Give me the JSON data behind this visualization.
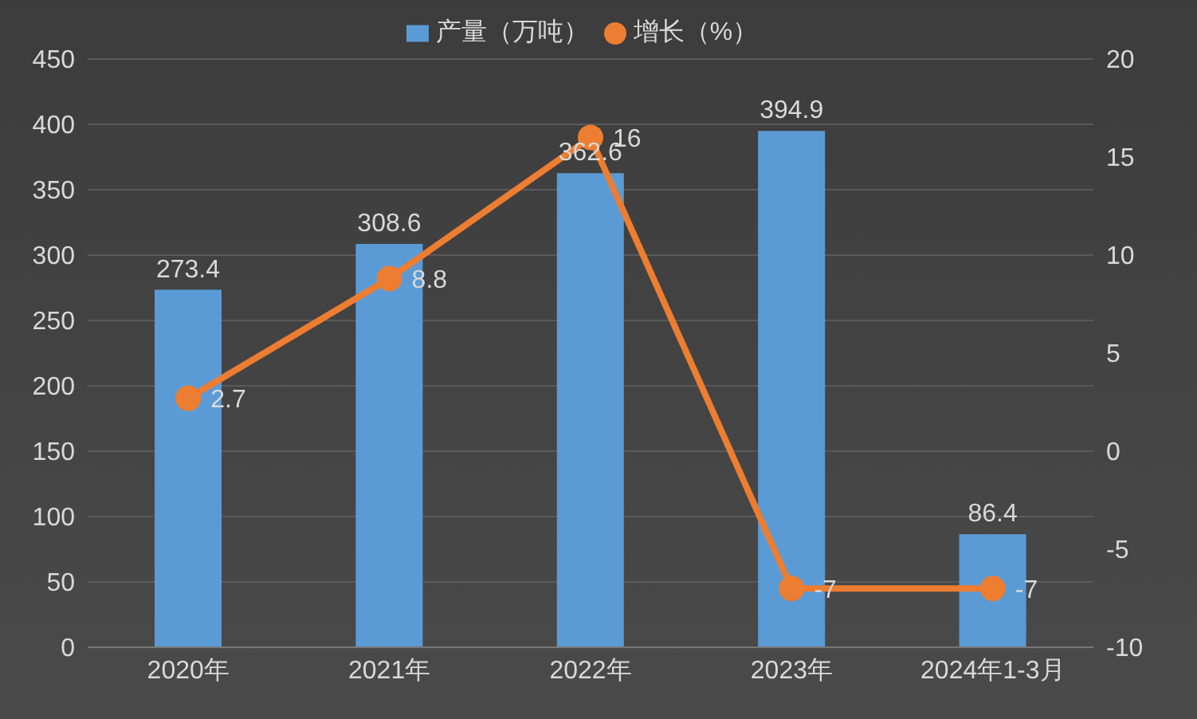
{
  "chart_data": {
    "type": "bar",
    "categories": [
      "2020年",
      "2021年",
      "2022年",
      "2023年",
      "2024年1-3月"
    ],
    "series": [
      {
        "name": "产量（万吨）",
        "color": "#5b9bd5",
        "values": [
          273.4,
          308.6,
          362.6,
          394.9,
          86.4
        ]
      },
      {
        "name": "增长（%）",
        "type": "line",
        "axis": "y2",
        "color": "#ed7d31",
        "values": [
          2.7,
          8.8,
          16,
          -7,
          -7
        ]
      }
    ],
    "ylim": [
      0,
      450
    ],
    "yticks": [
      0,
      50,
      100,
      150,
      200,
      250,
      300,
      350,
      400,
      450
    ],
    "y2lim": [
      -10,
      20
    ],
    "y2ticks": [
      -10,
      -5,
      0,
      5,
      10,
      15,
      20
    ],
    "grid": "y",
    "legend": "top",
    "marker": "circle",
    "data_labels": true
  }
}
